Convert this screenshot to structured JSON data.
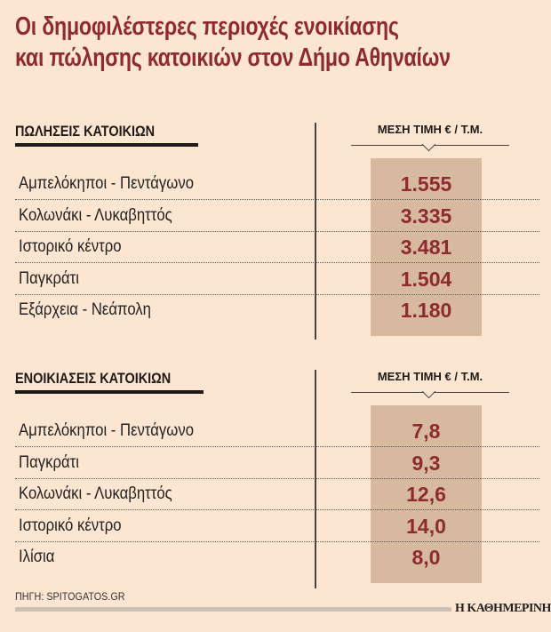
{
  "title": {
    "line1": "Οι δημοφιλέστερες περιοχές ενοικίασης",
    "line2": "και πώλησης κατοικιών στον Δήμο Αθηναίων"
  },
  "chart_data": [
    {
      "type": "table",
      "title": "ΠΩΛΗΣΕΙΣ ΚΑΤΟΙΚΙΩΝ",
      "column_header": "ΜΕΣΗ ΤΙΜΗ € / Τ.Μ.",
      "rows": [
        {
          "area": "Αμπελόκηποι - Πεντάγωνο",
          "value": "1.555"
        },
        {
          "area": "Κολωνάκι - Λυκαβηττός",
          "value": "3.335"
        },
        {
          "area": "Ιστορικό κέντρο",
          "value": "3.481"
        },
        {
          "area": "Παγκράτι",
          "value": "1.504"
        },
        {
          "area": "Εξάρχεια - Νεάπολη",
          "value": "1.180"
        }
      ]
    },
    {
      "type": "table",
      "title": "ΕΝΟΙΚΙΑΣΕΙΣ ΚΑΤΟΙΚΙΩΝ",
      "column_header": "ΜΕΣΗ ΤΙΜΗ € / Τ.Μ.",
      "rows": [
        {
          "area": "Αμπελόκηποι - Πεντάγωνο",
          "value": "7,8"
        },
        {
          "area": "Παγκράτι",
          "value": "9,3"
        },
        {
          "area": "Κολωνάκι - Λυκαβηττός",
          "value": "12,6"
        },
        {
          "area": "Ιστορικό κέντρο",
          "value": "14,0"
        },
        {
          "area": "Ιλίσια",
          "value": "8,0"
        }
      ]
    }
  ],
  "source": "ΠΗΓΗ: SPITOGATOS.GR",
  "logo": "Η ΚΑΘΗΜΕΡΙΝΗ",
  "colors": {
    "background": "#fde6d1",
    "accent": "#8e2b30",
    "value_box": "#d6b99e"
  }
}
